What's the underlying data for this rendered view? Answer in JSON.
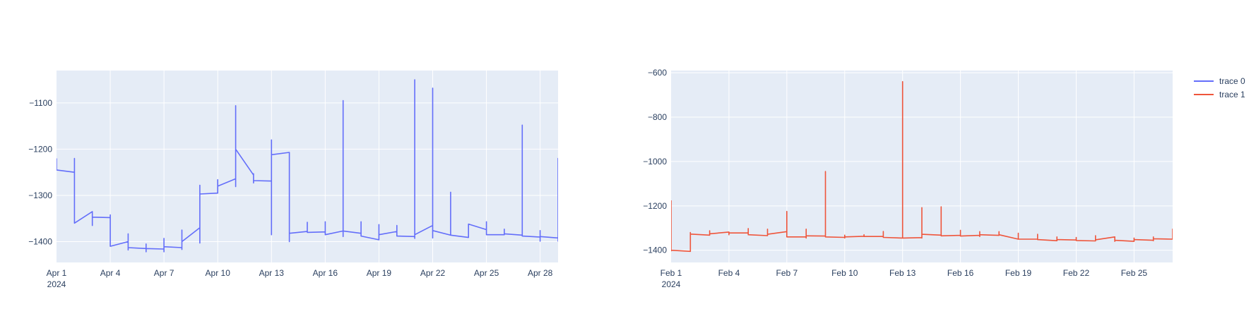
{
  "chart_data": [
    {
      "type": "line",
      "x_axis": {
        "range": [
          "2024-04-01",
          "2024-04-29T00:00"
        ],
        "tick_labels": [
          "Apr 1",
          "Apr 4",
          "Apr 7",
          "Apr 10",
          "Apr 13",
          "Apr 16",
          "Apr 19",
          "Apr 22",
          "Apr 25",
          "Apr 28"
        ],
        "tick_dates": [
          "2024-04-01",
          "2024-04-04",
          "2024-04-07",
          "2024-04-10",
          "2024-04-13",
          "2024-04-16",
          "2024-04-19",
          "2024-04-22",
          "2024-04-25",
          "2024-04-28"
        ],
        "year_label": "2024"
      },
      "y_axis": {
        "range": [
          -1445,
          -1030
        ],
        "ticks": [
          -1100,
          -1200,
          -1300,
          -1400
        ],
        "tick_labels": [
          "−1100",
          "−1200",
          "−1300",
          "−1400"
        ]
      },
      "grid": true,
      "series": [
        {
          "name": "trace 0",
          "color": "#636efa",
          "points": [
            [
              "2024-04-01T00:00",
              -1220
            ],
            [
              "2024-04-01T00:00",
              -1245
            ],
            [
              "2024-04-02T00:00",
              -1250
            ],
            [
              "2024-04-02T00:00",
              -1220
            ],
            [
              "2024-04-02T00:00",
              -1360
            ],
            [
              "2024-04-03T00:00",
              -1335
            ],
            [
              "2024-04-03T00:00",
              -1365
            ],
            [
              "2024-04-03T00:00",
              -1347
            ],
            [
              "2024-04-04T00:00",
              -1348
            ],
            [
              "2024-04-04T00:00",
              -1342
            ],
            [
              "2024-04-04T00:00",
              -1410
            ],
            [
              "2024-04-05T00:00",
              -1400
            ],
            [
              "2024-04-05T00:00",
              -1383
            ],
            [
              "2024-04-05T00:00",
              -1418
            ],
            [
              "2024-04-05T00:00",
              -1413
            ],
            [
              "2024-04-06T00:00",
              -1415
            ],
            [
              "2024-04-06T00:00",
              -1405
            ],
            [
              "2024-04-06T00:00",
              -1422
            ],
            [
              "2024-04-06T00:00",
              -1415
            ],
            [
              "2024-04-07T00:00",
              -1416
            ],
            [
              "2024-04-07T00:00",
              -1393
            ],
            [
              "2024-04-07T00:00",
              -1422
            ],
            [
              "2024-04-07T00:00",
              -1411
            ],
            [
              "2024-04-08T00:00",
              -1413
            ],
            [
              "2024-04-08T00:00",
              -1375
            ],
            [
              "2024-04-08T00:00",
              -1417
            ],
            [
              "2024-04-08T00:00",
              -1400
            ],
            [
              "2024-04-09T00:00",
              -1370
            ],
            [
              "2024-04-09T00:00",
              -1278
            ],
            [
              "2024-04-09T00:00",
              -1403
            ],
            [
              "2024-04-09T00:00",
              -1297
            ],
            [
              "2024-04-10T00:00",
              -1295
            ],
            [
              "2024-04-10T00:00",
              -1266
            ],
            [
              "2024-04-10T00:00",
              -1280
            ],
            [
              "2024-04-11T00:00",
              -1264
            ],
            [
              "2024-04-11T00:00",
              -1106
            ],
            [
              "2024-04-11T00:00",
              -1281
            ],
            [
              "2024-04-11T00:00",
              -1200
            ],
            [
              "2024-04-12T00:00",
              -1256
            ],
            [
              "2024-04-12T00:00",
              -1253
            ],
            [
              "2024-04-12T00:00",
              -1273
            ],
            [
              "2024-04-12T00:00",
              -1268
            ],
            [
              "2024-04-13T00:00",
              -1269
            ],
            [
              "2024-04-13T00:00",
              -1180
            ],
            [
              "2024-04-13T00:00",
              -1385
            ],
            [
              "2024-04-13T00:00",
              -1212
            ],
            [
              "2024-04-14T00:00",
              -1207
            ],
            [
              "2024-04-14T00:00",
              -1400
            ],
            [
              "2024-04-14T00:00",
              -1382
            ],
            [
              "2024-04-15T00:00",
              -1378
            ],
            [
              "2024-04-15T00:00",
              -1358
            ],
            [
              "2024-04-15T00:00",
              -1380
            ],
            [
              "2024-04-16T00:00",
              -1379
            ],
            [
              "2024-04-16T00:00",
              -1357
            ],
            [
              "2024-04-16T00:00",
              -1385
            ],
            [
              "2024-04-17T00:00",
              -1377
            ],
            [
              "2024-04-17T00:00",
              -1095
            ],
            [
              "2024-04-17T00:00",
              -1389
            ],
            [
              "2024-04-17T00:00",
              -1377
            ],
            [
              "2024-04-18T00:00",
              -1382
            ],
            [
              "2024-04-18T00:00",
              -1357
            ],
            [
              "2024-04-18T00:00",
              -1388
            ],
            [
              "2024-04-19T00:00",
              -1396
            ],
            [
              "2024-04-19T00:00",
              -1363
            ],
            [
              "2024-04-19T00:00",
              -1395
            ],
            [
              "2024-04-19T00:00",
              -1385
            ],
            [
              "2024-04-20T00:00",
              -1378
            ],
            [
              "2024-04-20T00:00",
              -1365
            ],
            [
              "2024-04-20T00:00",
              -1388
            ],
            [
              "2024-04-21T00:00",
              -1389
            ],
            [
              "2024-04-21T00:00",
              -1050
            ],
            [
              "2024-04-21T00:00",
              -1393
            ],
            [
              "2024-04-21T00:00",
              -1385
            ],
            [
              "2024-04-22T00:00",
              -1365
            ],
            [
              "2024-04-22T00:00",
              -1068
            ],
            [
              "2024-04-22T00:00",
              -1392
            ],
            [
              "2024-04-22T00:00",
              -1376
            ],
            [
              "2024-04-23T00:00",
              -1386
            ],
            [
              "2024-04-23T00:00",
              -1293
            ],
            [
              "2024-04-23T00:00",
              -1386
            ],
            [
              "2024-04-24T00:00",
              -1391
            ],
            [
              "2024-04-24T00:00",
              -1362
            ],
            [
              "2024-04-25T00:00",
              -1374
            ],
            [
              "2024-04-25T00:00",
              -1357
            ],
            [
              "2024-04-25T00:00",
              -1385
            ],
            [
              "2024-04-26T00:00",
              -1385
            ],
            [
              "2024-04-26T00:00",
              -1373
            ],
            [
              "2024-04-26T00:00",
              -1383
            ],
            [
              "2024-04-27T00:00",
              -1386
            ],
            [
              "2024-04-27T00:00",
              -1148
            ],
            [
              "2024-04-27T00:00",
              -1388
            ],
            [
              "2024-04-28T00:00",
              -1390
            ],
            [
              "2024-04-28T00:00",
              -1376
            ],
            [
              "2024-04-28T00:00",
              -1399
            ],
            [
              "2024-04-28T00:00",
              -1389
            ],
            [
              "2024-04-29T00:00",
              -1392
            ],
            [
              "2024-04-29T00:00",
              -1220
            ],
            [
              "2024-04-29T00:00",
              -1400
            ]
          ]
        }
      ]
    },
    {
      "type": "line",
      "x_axis": {
        "range": [
          "2024-02-01",
          "2024-02-27T00:00"
        ],
        "tick_labels": [
          "Feb 1",
          "Feb 4",
          "Feb 7",
          "Feb 10",
          "Feb 13",
          "Feb 16",
          "Feb 19",
          "Feb 22",
          "Feb 25"
        ],
        "tick_dates": [
          "2024-02-01",
          "2024-02-04",
          "2024-02-07",
          "2024-02-10",
          "2024-02-13",
          "2024-02-16",
          "2024-02-19",
          "2024-02-22",
          "2024-02-25"
        ],
        "year_label": "2024"
      },
      "y_axis": {
        "range": [
          -1455,
          -590
        ],
        "ticks": [
          -600,
          -800,
          -1000,
          -1200,
          -1400
        ],
        "tick_labels": [
          "−600",
          "−800",
          "−1000",
          "−1200",
          "−1400"
        ]
      },
      "grid": true,
      "series": [
        {
          "name": "trace 1",
          "color": "#ef553b",
          "points": [
            [
              "2024-02-01T00:00",
              -1175
            ],
            [
              "2024-02-01T00:00",
              -1403
            ],
            [
              "2024-02-01T00:00",
              -1400
            ],
            [
              "2024-02-02T00:00",
              -1405
            ],
            [
              "2024-02-02T00:00",
              -1320
            ],
            [
              "2024-02-02T00:00",
              -1327
            ],
            [
              "2024-02-03T00:00",
              -1332
            ],
            [
              "2024-02-03T00:00",
              -1312
            ],
            [
              "2024-02-03T00:00",
              -1326
            ],
            [
              "2024-02-04T00:00",
              -1318
            ],
            [
              "2024-02-04T00:00",
              -1330
            ],
            [
              "2024-02-04T00:00",
              -1322
            ],
            [
              "2024-02-05T00:00",
              -1322
            ],
            [
              "2024-02-05T00:00",
              -1302
            ],
            [
              "2024-02-05T00:00",
              -1330
            ],
            [
              "2024-02-06T00:00",
              -1334
            ],
            [
              "2024-02-06T00:00",
              -1305
            ],
            [
              "2024-02-06T00:00",
              -1328
            ],
            [
              "2024-02-07T00:00",
              -1316
            ],
            [
              "2024-02-07T00:00",
              -1225
            ],
            [
              "2024-02-07T00:00",
              -1340
            ],
            [
              "2024-02-08T00:00",
              -1340
            ],
            [
              "2024-02-08T00:00",
              -1305
            ],
            [
              "2024-02-08T00:00",
              -1345
            ],
            [
              "2024-02-08T00:00",
              -1335
            ],
            [
              "2024-02-09T00:00",
              -1336
            ],
            [
              "2024-02-09T00:00",
              -1045
            ],
            [
              "2024-02-09T00:00",
              -1340
            ],
            [
              "2024-02-10T00:00",
              -1342
            ],
            [
              "2024-02-10T00:00",
              -1332
            ],
            [
              "2024-02-10T00:00",
              -1345
            ],
            [
              "2024-02-10T00:00",
              -1340
            ],
            [
              "2024-02-11T00:00",
              -1337
            ],
            [
              "2024-02-11T00:00",
              -1330
            ],
            [
              "2024-02-11T00:00",
              -1338
            ],
            [
              "2024-02-12T00:00",
              -1338
            ],
            [
              "2024-02-12T00:00",
              -1315
            ],
            [
              "2024-02-12T00:00",
              -1342
            ],
            [
              "2024-02-13T00:00",
              -1345
            ],
            [
              "2024-02-13T00:00",
              -640
            ],
            [
              "2024-02-13T00:00",
              -1345
            ],
            [
              "2024-02-14T00:00",
              -1343
            ],
            [
              "2024-02-14T00:00",
              -1208
            ],
            [
              "2024-02-14T00:00",
              -1345
            ],
            [
              "2024-02-14T00:00",
              -1328
            ],
            [
              "2024-02-15T00:00",
              -1332
            ],
            [
              "2024-02-15T00:00",
              -1204
            ],
            [
              "2024-02-15T00:00",
              -1335
            ],
            [
              "2024-02-16T00:00",
              -1333
            ],
            [
              "2024-02-16T00:00",
              -1310
            ],
            [
              "2024-02-16T00:00",
              -1336
            ],
            [
              "2024-02-17T00:00",
              -1333
            ],
            [
              "2024-02-17T00:00",
              -1316
            ],
            [
              "2024-02-17T00:00",
              -1338
            ],
            [
              "2024-02-17T00:00",
              -1330
            ],
            [
              "2024-02-18T00:00",
              -1333
            ],
            [
              "2024-02-18T00:00",
              -1316
            ],
            [
              "2024-02-18T00:00",
              -1330
            ],
            [
              "2024-02-19T00:00",
              -1350
            ],
            [
              "2024-02-19T00:00",
              -1323
            ],
            [
              "2024-02-19T00:00",
              -1350
            ],
            [
              "2024-02-20T00:00",
              -1350
            ],
            [
              "2024-02-20T00:00",
              -1328
            ],
            [
              "2024-02-20T00:00",
              -1352
            ],
            [
              "2024-02-21T00:00",
              -1357
            ],
            [
              "2024-02-21T00:00",
              -1340
            ],
            [
              "2024-02-21T00:00",
              -1352
            ],
            [
              "2024-02-22T00:00",
              -1354
            ],
            [
              "2024-02-22T00:00",
              -1342
            ],
            [
              "2024-02-22T00:00",
              -1356
            ],
            [
              "2024-02-23T00:00",
              -1358
            ],
            [
              "2024-02-23T00:00",
              -1334
            ],
            [
              "2024-02-23T00:00",
              -1353
            ],
            [
              "2024-02-24T00:00",
              -1340
            ],
            [
              "2024-02-24T00:00",
              -1360
            ],
            [
              "2024-02-24T00:00",
              -1355
            ],
            [
              "2024-02-25T00:00",
              -1360
            ],
            [
              "2024-02-25T00:00",
              -1345
            ],
            [
              "2024-02-25T00:00",
              -1352
            ],
            [
              "2024-02-26T00:00",
              -1355
            ],
            [
              "2024-02-26T00:00",
              -1340
            ],
            [
              "2024-02-26T00:00",
              -1357
            ],
            [
              "2024-02-26T00:00",
              -1348
            ],
            [
              "2024-02-27T00:00",
              -1350
            ],
            [
              "2024-02-27T00:00",
              -1305
            ],
            [
              "2024-02-27T00:00",
              -1350
            ]
          ]
        }
      ]
    }
  ],
  "legend": {
    "placement": "top-right",
    "items": [
      {
        "label": "trace 0",
        "color": "#636efa"
      },
      {
        "label": "trace 1",
        "color": "#ef553b"
      }
    ]
  },
  "colors": {
    "plot_background": "#e5ecf6",
    "grid": "#ffffff",
    "tick_text": "#2a3f5f"
  }
}
